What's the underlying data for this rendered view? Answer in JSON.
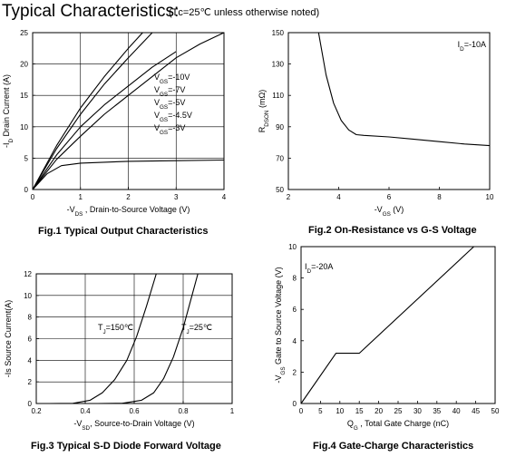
{
  "header": {
    "title": "Typical Characteristics:",
    "conditions": "(Tᴄ=25℃  unless otherwise noted)"
  },
  "chart_data": [
    {
      "type": "line",
      "caption": "Fig.1 Typical Output Characteristics",
      "xlabel": "-V",
      "xlabel_sub": "DS",
      "xlabel_rest": " , Drain-to-Source Voltage (V)",
      "ylabel": "-I",
      "ylabel_sub": "D",
      "ylabel_rest": " Drain Current (A)",
      "xlim": [
        0,
        4
      ],
      "ylim": [
        0,
        25
      ],
      "xticks": [
        "0",
        "1",
        "2",
        "3",
        "4"
      ],
      "yticks": [
        "0",
        "5",
        "10",
        "15",
        "20",
        "25"
      ],
      "grid": true,
      "labels": [
        {
          "pre": "V",
          "sub": "GS",
          "post": "=-10V"
        },
        {
          "pre": "V",
          "sub": "GS",
          "post": "=-7V"
        },
        {
          "pre": "V",
          "sub": "GS",
          "post": "=-5V"
        },
        {
          "pre": "V",
          "sub": "GS",
          "post": "=-4.5V"
        },
        {
          "pre": "V",
          "sub": "GS",
          "post": "=-3V"
        }
      ],
      "series": [
        {
          "x": [
            0,
            0.5,
            1,
            1.5,
            2,
            2.3
          ],
          "y": [
            0,
            7,
            13,
            18,
            22.5,
            25
          ]
        },
        {
          "x": [
            0,
            0.5,
            1,
            1.5,
            2,
            2.5
          ],
          "y": [
            0,
            6.5,
            12,
            16.8,
            21,
            25
          ]
        },
        {
          "x": [
            0,
            0.5,
            1,
            1.5,
            2,
            2.5,
            3
          ],
          "y": [
            0,
            5.5,
            10,
            13.5,
            16.5,
            19.5,
            22
          ]
        },
        {
          "x": [
            0,
            0.5,
            1,
            1.5,
            2,
            2.5,
            3,
            3.5,
            4
          ],
          "y": [
            0,
            4.8,
            8.5,
            12,
            15,
            18,
            21,
            23.2,
            25
          ]
        },
        {
          "x": [
            0,
            0.3,
            0.6,
            1,
            2,
            3,
            4
          ],
          "y": [
            0,
            2.5,
            3.8,
            4.2,
            4.5,
            4.6,
            4.7
          ]
        }
      ]
    },
    {
      "type": "line",
      "caption": "Fig.2 On-Resistance vs G-S Voltage",
      "xlabel": "-V",
      "xlabel_sub": "GS",
      "xlabel_rest": " (V)",
      "ylabel": "R",
      "ylabel_sub": "DSON",
      "ylabel_rest": " (mΩ)",
      "annotation": {
        "pre": "I",
        "sub": "D",
        "post": "=-10A"
      },
      "xlim": [
        2,
        10
      ],
      "ylim": [
        50,
        150
      ],
      "xticks": [
        "2",
        "4",
        "6",
        "8",
        "10"
      ],
      "yticks": [
        "50",
        "70",
        "90",
        "110",
        "130",
        "150"
      ],
      "grid": false,
      "series": [
        {
          "x": [
            3.2,
            3.5,
            3.8,
            4.1,
            4.4,
            4.7,
            5,
            6,
            7,
            8,
            9,
            10
          ],
          "y": [
            150,
            123,
            105,
            94,
            88,
            85,
            84.5,
            83.5,
            82,
            80.5,
            79,
            78
          ]
        }
      ]
    },
    {
      "type": "line",
      "caption": "Fig.3 Typical S-D Diode Forward Voltage",
      "xlabel": "-V",
      "xlabel_sub": "SD",
      "xlabel_rest": ", Source-to-Drain Voltage (V)",
      "ylabel": "-Is Source Current(A)",
      "xlim": [
        0.2,
        1
      ],
      "ylim": [
        0,
        12
      ],
      "xticks": [
        "0.2",
        "0.4",
        "0.6",
        "0.8",
        "1"
      ],
      "yticks": [
        "0",
        "2",
        "4",
        "6",
        "8",
        "10",
        "12"
      ],
      "grid": true,
      "labels": [
        {
          "pre": "T",
          "sub": "J",
          "post": "=150℃"
        },
        {
          "pre": "T",
          "sub": "J",
          "post": "=25℃"
        }
      ],
      "series": [
        {
          "x": [
            0.25,
            0.35,
            0.42,
            0.47,
            0.52,
            0.57,
            0.61,
            0.65,
            0.69
          ],
          "y": [
            0,
            0.02,
            0.3,
            1,
            2.2,
            4,
            6.2,
            9,
            12
          ]
        },
        {
          "x": [
            0.45,
            0.55,
            0.63,
            0.68,
            0.72,
            0.76,
            0.8,
            0.83,
            0.86
          ],
          "y": [
            0,
            0.02,
            0.3,
            1,
            2.3,
            4.3,
            7,
            9.5,
            12
          ]
        }
      ]
    },
    {
      "type": "line",
      "caption": "Fig.4 Gate-Charge Characteristics",
      "xlabel": "Q",
      "xlabel_sub": "G",
      "xlabel_rest": " , Total Gate Charge (nC)",
      "ylabel": "-V",
      "ylabel_sub": "GS",
      "ylabel_rest": " Gate to Source Voltage (V)",
      "annotation": {
        "pre": "I",
        "sub": "D",
        "post": "=-20A"
      },
      "xlim": [
        0,
        50
      ],
      "ylim": [
        0,
        10
      ],
      "xticks": [
        "0",
        "5",
        "10",
        "15",
        "20",
        "25",
        "30",
        "35",
        "40",
        "45",
        "50"
      ],
      "yticks": [
        "0",
        "2",
        "4",
        "6",
        "8",
        "10"
      ],
      "grid": false,
      "series": [
        {
          "x": [
            0,
            9,
            15,
            44.5
          ],
          "y": [
            0,
            3.2,
            3.2,
            10
          ]
        }
      ]
    }
  ]
}
